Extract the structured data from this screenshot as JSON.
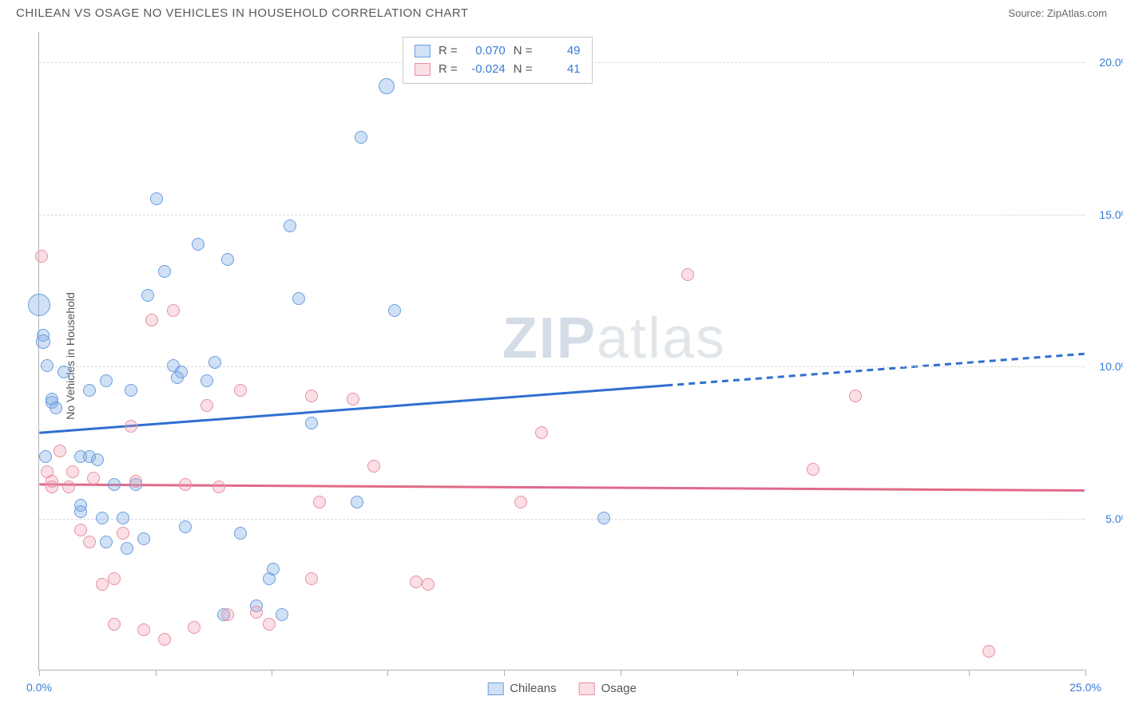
{
  "header": {
    "title": "CHILEAN VS OSAGE NO VEHICLES IN HOUSEHOLD CORRELATION CHART",
    "source_label": "Source:",
    "source_name": "ZipAtlas.com"
  },
  "ylabel": "No Vehicles in Household",
  "watermark": {
    "part1": "ZIP",
    "part2": "atlas"
  },
  "chart": {
    "type": "scatter",
    "xlim": [
      0,
      25
    ],
    "ylim": [
      0,
      21
    ],
    "background_color": "#ffffff",
    "grid_color": "#d8d8d8",
    "axis_color": "#b0b0b0",
    "ytick_labels": [
      {
        "v": 5,
        "label": "5.0%"
      },
      {
        "v": 10,
        "label": "10.0%"
      },
      {
        "v": 15,
        "label": "15.0%"
      },
      {
        "v": 20,
        "label": "20.0%"
      }
    ],
    "ygrid": [
      5,
      10,
      15,
      20
    ],
    "xtick_positions": [
      0,
      2.78,
      5.56,
      8.33,
      11.11,
      13.89,
      16.67,
      19.44,
      22.22,
      25
    ],
    "xtick_labels": [
      {
        "v": 0,
        "label": "0.0%"
      },
      {
        "v": 25,
        "label": "25.0%"
      }
    ],
    "series": [
      {
        "name": "Chileans",
        "fill": "rgba(120,165,225,0.35)",
        "stroke": "#6a9fe0",
        "trend_color": "#2f6fd0",
        "trend": {
          "y0": 7.8,
          "y1": 10.4,
          "solid_until": 15.0
        },
        "R_label": "R =",
        "R": "0.070",
        "N_label": "N =",
        "N": "49",
        "points": [
          {
            "x": 0.0,
            "y": 12.0,
            "r": 14
          },
          {
            "x": 0.1,
            "y": 10.8,
            "r": 9
          },
          {
            "x": 0.1,
            "y": 11.0,
            "r": 8
          },
          {
            "x": 0.2,
            "y": 10.0,
            "r": 8
          },
          {
            "x": 0.3,
            "y": 8.8,
            "r": 8
          },
          {
            "x": 0.3,
            "y": 8.9,
            "r": 8
          },
          {
            "x": 0.4,
            "y": 8.6,
            "r": 8
          },
          {
            "x": 0.15,
            "y": 7.0,
            "r": 8
          },
          {
            "x": 0.6,
            "y": 9.8,
            "r": 8
          },
          {
            "x": 1.0,
            "y": 7.0,
            "r": 8
          },
          {
            "x": 1.0,
            "y": 5.2,
            "r": 8
          },
          {
            "x": 1.0,
            "y": 5.4,
            "r": 8
          },
          {
            "x": 1.2,
            "y": 9.2,
            "r": 8
          },
          {
            "x": 1.2,
            "y": 7.0,
            "r": 8
          },
          {
            "x": 1.4,
            "y": 6.9,
            "r": 8
          },
          {
            "x": 1.5,
            "y": 5.0,
            "r": 8
          },
          {
            "x": 1.6,
            "y": 9.5,
            "r": 8
          },
          {
            "x": 1.6,
            "y": 4.2,
            "r": 8
          },
          {
            "x": 1.8,
            "y": 6.1,
            "r": 8
          },
          {
            "x": 2.0,
            "y": 5.0,
            "r": 8
          },
          {
            "x": 2.1,
            "y": 4.0,
            "r": 8
          },
          {
            "x": 2.2,
            "y": 9.2,
            "r": 8
          },
          {
            "x": 2.3,
            "y": 6.1,
            "r": 8
          },
          {
            "x": 2.5,
            "y": 4.3,
            "r": 8
          },
          {
            "x": 2.6,
            "y": 12.3,
            "r": 8
          },
          {
            "x": 2.8,
            "y": 15.5,
            "r": 8
          },
          {
            "x": 3.0,
            "y": 13.1,
            "r": 8
          },
          {
            "x": 3.2,
            "y": 10.0,
            "r": 8
          },
          {
            "x": 3.3,
            "y": 9.6,
            "r": 8
          },
          {
            "x": 3.4,
            "y": 9.8,
            "r": 8
          },
          {
            "x": 3.5,
            "y": 4.7,
            "r": 8
          },
          {
            "x": 3.8,
            "y": 14.0,
            "r": 8
          },
          {
            "x": 4.0,
            "y": 9.5,
            "r": 8
          },
          {
            "x": 4.2,
            "y": 10.1,
            "r": 8
          },
          {
            "x": 4.4,
            "y": 1.8,
            "r": 8
          },
          {
            "x": 4.5,
            "y": 13.5,
            "r": 8
          },
          {
            "x": 4.8,
            "y": 4.5,
            "r": 8
          },
          {
            "x": 5.2,
            "y": 2.1,
            "r": 8
          },
          {
            "x": 5.5,
            "y": 3.0,
            "r": 8
          },
          {
            "x": 5.6,
            "y": 3.3,
            "r": 8
          },
          {
            "x": 5.8,
            "y": 1.8,
            "r": 8
          },
          {
            "x": 6.0,
            "y": 14.6,
            "r": 8
          },
          {
            "x": 6.2,
            "y": 12.2,
            "r": 8
          },
          {
            "x": 6.5,
            "y": 8.1,
            "r": 8
          },
          {
            "x": 7.6,
            "y": 5.5,
            "r": 8
          },
          {
            "x": 7.7,
            "y": 17.5,
            "r": 8
          },
          {
            "x": 8.3,
            "y": 19.2,
            "r": 10
          },
          {
            "x": 8.5,
            "y": 11.8,
            "r": 8
          },
          {
            "x": 13.5,
            "y": 5.0,
            "r": 8
          }
        ]
      },
      {
        "name": "Osage",
        "fill": "rgba(240,150,170,0.30)",
        "stroke": "#e890a5",
        "trend_color": "#e06a8a",
        "trend": {
          "y0": 6.1,
          "y1": 5.9,
          "solid_until": 25.0
        },
        "R_label": "R =",
        "R": "-0.024",
        "N_label": "N =",
        "N": "41",
        "points": [
          {
            "x": 0.05,
            "y": 13.6,
            "r": 8
          },
          {
            "x": 0.2,
            "y": 6.5,
            "r": 8
          },
          {
            "x": 0.3,
            "y": 6.0,
            "r": 8
          },
          {
            "x": 0.3,
            "y": 6.2,
            "r": 8
          },
          {
            "x": 0.5,
            "y": 7.2,
            "r": 8
          },
          {
            "x": 0.7,
            "y": 6.0,
            "r": 8
          },
          {
            "x": 0.8,
            "y": 6.5,
            "r": 8
          },
          {
            "x": 1.0,
            "y": 4.6,
            "r": 8
          },
          {
            "x": 1.2,
            "y": 4.2,
            "r": 8
          },
          {
            "x": 1.3,
            "y": 6.3,
            "r": 8
          },
          {
            "x": 1.5,
            "y": 2.8,
            "r": 8
          },
          {
            "x": 1.8,
            "y": 3.0,
            "r": 8
          },
          {
            "x": 1.8,
            "y": 1.5,
            "r": 8
          },
          {
            "x": 2.0,
            "y": 4.5,
            "r": 8
          },
          {
            "x": 2.2,
            "y": 8.0,
            "r": 8
          },
          {
            "x": 2.3,
            "y": 6.2,
            "r": 8
          },
          {
            "x": 2.5,
            "y": 1.3,
            "r": 8
          },
          {
            "x": 2.7,
            "y": 11.5,
            "r": 8
          },
          {
            "x": 3.0,
            "y": 1.0,
            "r": 8
          },
          {
            "x": 3.2,
            "y": 11.8,
            "r": 8
          },
          {
            "x": 3.5,
            "y": 6.1,
            "r": 8
          },
          {
            "x": 3.7,
            "y": 1.4,
            "r": 8
          },
          {
            "x": 4.0,
            "y": 8.7,
            "r": 8
          },
          {
            "x": 4.3,
            "y": 6.0,
            "r": 8
          },
          {
            "x": 4.5,
            "y": 1.8,
            "r": 8
          },
          {
            "x": 4.8,
            "y": 9.2,
            "r": 8
          },
          {
            "x": 5.2,
            "y": 1.9,
            "r": 8
          },
          {
            "x": 5.5,
            "y": 1.5,
            "r": 8
          },
          {
            "x": 6.5,
            "y": 3.0,
            "r": 8
          },
          {
            "x": 6.5,
            "y": 9.0,
            "r": 8
          },
          {
            "x": 6.7,
            "y": 5.5,
            "r": 8
          },
          {
            "x": 7.5,
            "y": 8.9,
            "r": 8
          },
          {
            "x": 8.0,
            "y": 6.7,
            "r": 8
          },
          {
            "x": 9.0,
            "y": 2.9,
            "r": 8
          },
          {
            "x": 9.3,
            "y": 2.8,
            "r": 8
          },
          {
            "x": 11.5,
            "y": 5.5,
            "r": 8
          },
          {
            "x": 12.0,
            "y": 7.8,
            "r": 8
          },
          {
            "x": 15.5,
            "y": 13.0,
            "r": 8
          },
          {
            "x": 18.5,
            "y": 6.6,
            "r": 8
          },
          {
            "x": 19.5,
            "y": 9.0,
            "r": 8
          },
          {
            "x": 22.7,
            "y": 0.6,
            "r": 8
          }
        ]
      }
    ]
  }
}
